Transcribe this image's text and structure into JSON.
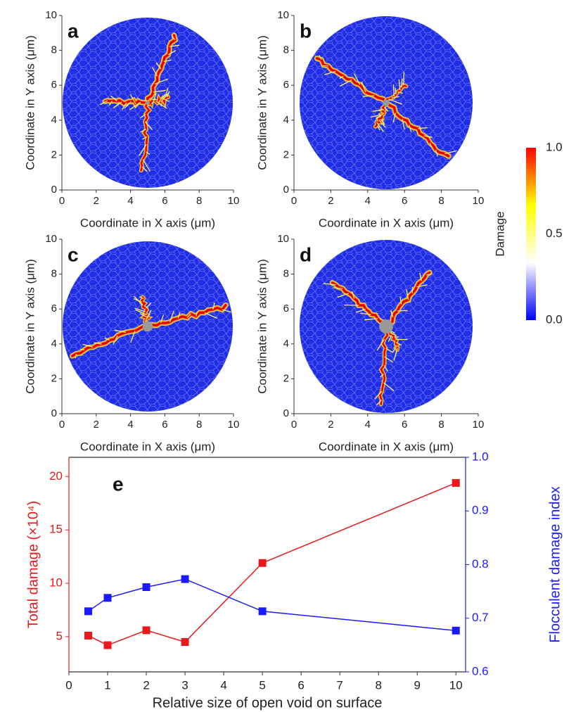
{
  "chart_data": [
    {
      "type": "damage_map",
      "label": "a",
      "xlim": [
        0,
        10
      ],
      "ylim": [
        0,
        10
      ],
      "xticks": [
        0,
        2,
        4,
        6,
        8,
        10
      ],
      "yticks": [
        0,
        2,
        4,
        6,
        8,
        10
      ],
      "xlabel": "Coordinate in X axis (μm)",
      "ylabel": "Coordinate in Y axis (μm)"
    },
    {
      "type": "damage_map",
      "label": "b",
      "xlim": [
        0,
        10
      ],
      "ylim": [
        0,
        10
      ],
      "xticks": [
        0,
        2,
        4,
        6,
        8,
        10
      ],
      "yticks": [
        0,
        2,
        4,
        6,
        8,
        10
      ],
      "xlabel": "Coordinate in X axis (μm)",
      "ylabel": "Coordinate in Y axis (μm)"
    },
    {
      "type": "damage_map",
      "label": "c",
      "xlim": [
        0,
        10
      ],
      "ylim": [
        0,
        10
      ],
      "xticks": [
        0,
        2,
        4,
        6,
        8,
        10
      ],
      "yticks": [
        0,
        2,
        4,
        6,
        8,
        10
      ],
      "xlabel": "Coordinate in X axis (μm)",
      "ylabel": "Coordinate in Y axis (μm)"
    },
    {
      "type": "damage_map",
      "label": "d",
      "xlim": [
        0,
        10
      ],
      "ylim": [
        0,
        10
      ],
      "xticks": [
        0,
        2,
        4,
        6,
        8,
        10
      ],
      "yticks": [
        0,
        2,
        4,
        6,
        8,
        10
      ],
      "xlabel": "Coordinate in X axis (μm)",
      "ylabel": "Coordinate in Y axis (μm)"
    },
    {
      "type": "colorbar",
      "label": "Damage",
      "colors": [
        "#0000ff",
        "#ffffff",
        "#ffff00",
        "#ff0000"
      ],
      "ylim": [
        0,
        1
      ],
      "yticks": [
        {
          "value": 0,
          "label": "0.0"
        },
        0.5,
        {
          "value": 1,
          "label": "1.0"
        }
      ]
    },
    {
      "type": "line",
      "label": "e",
      "x": [
        0.5,
        1,
        2,
        3,
        5,
        10
      ],
      "xlim": [
        0,
        10.25
      ],
      "xticks": [
        0,
        1,
        2,
        3,
        4,
        5,
        6,
        7,
        8,
        9,
        10
      ],
      "xlabel": "Relative size of open void on surface",
      "ylim": [
        1.7,
        21.8
      ],
      "yticks": [
        5,
        10,
        15,
        20
      ],
      "ylabel": "Total damage (×10⁴)",
      "y2lim": [
        0.6,
        1.0
      ],
      "y2ticks": [
        0.6,
        0.7,
        0.8,
        0.9,
        {
          "value": 1,
          "label": "1.0"
        }
      ],
      "y2label": "Flocculent damage index",
      "series": [
        {
          "color": "#e8191c",
          "values": [
            5.1,
            4.2,
            5.6,
            4.5,
            11.9,
            19.4
          ]
        },
        {
          "color": "#1a1aff",
          "axis": "y2",
          "values": [
            0.713,
            0.738,
            0.758,
            0.773,
            0.713,
            0.677
          ]
        }
      ]
    }
  ]
}
